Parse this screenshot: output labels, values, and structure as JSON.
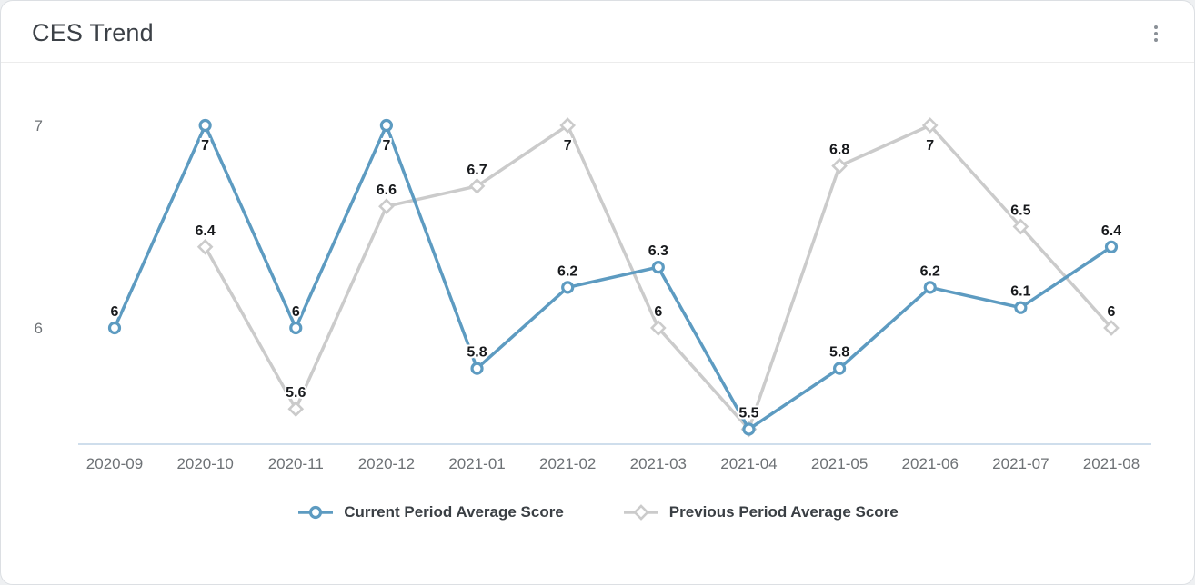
{
  "card": {
    "title": "CES Trend"
  },
  "chart_data": {
    "type": "line",
    "title": "CES Trend",
    "categories": [
      "2020-09",
      "2020-10",
      "2020-11",
      "2020-12",
      "2021-01",
      "2021-02",
      "2021-03",
      "2021-04",
      "2021-05",
      "2021-06",
      "2021-07",
      "2021-08"
    ],
    "series": [
      {
        "name": "Current Period Average Score",
        "color": "#5d9bc1",
        "marker": "circle",
        "values": [
          6,
          7,
          6,
          7,
          5.8,
          6.2,
          6.3,
          5.5,
          5.8,
          6.2,
          6.1,
          6.4
        ]
      },
      {
        "name": "Previous Period Average Score",
        "color": "#cbcbcb",
        "marker": "diamond",
        "values": [
          null,
          6.4,
          5.6,
          6.6,
          6.7,
          7,
          6,
          5.5,
          6.8,
          7,
          6.5,
          6
        ]
      }
    ],
    "yticks": [
      6,
      7
    ],
    "ylim": [
      5.4,
      7.3
    ],
    "grid": false,
    "legend_position": "bottom",
    "axis_line_color": "#bfd4e5",
    "tick_label_color": "#6e7276",
    "label_color": "#17191c"
  }
}
